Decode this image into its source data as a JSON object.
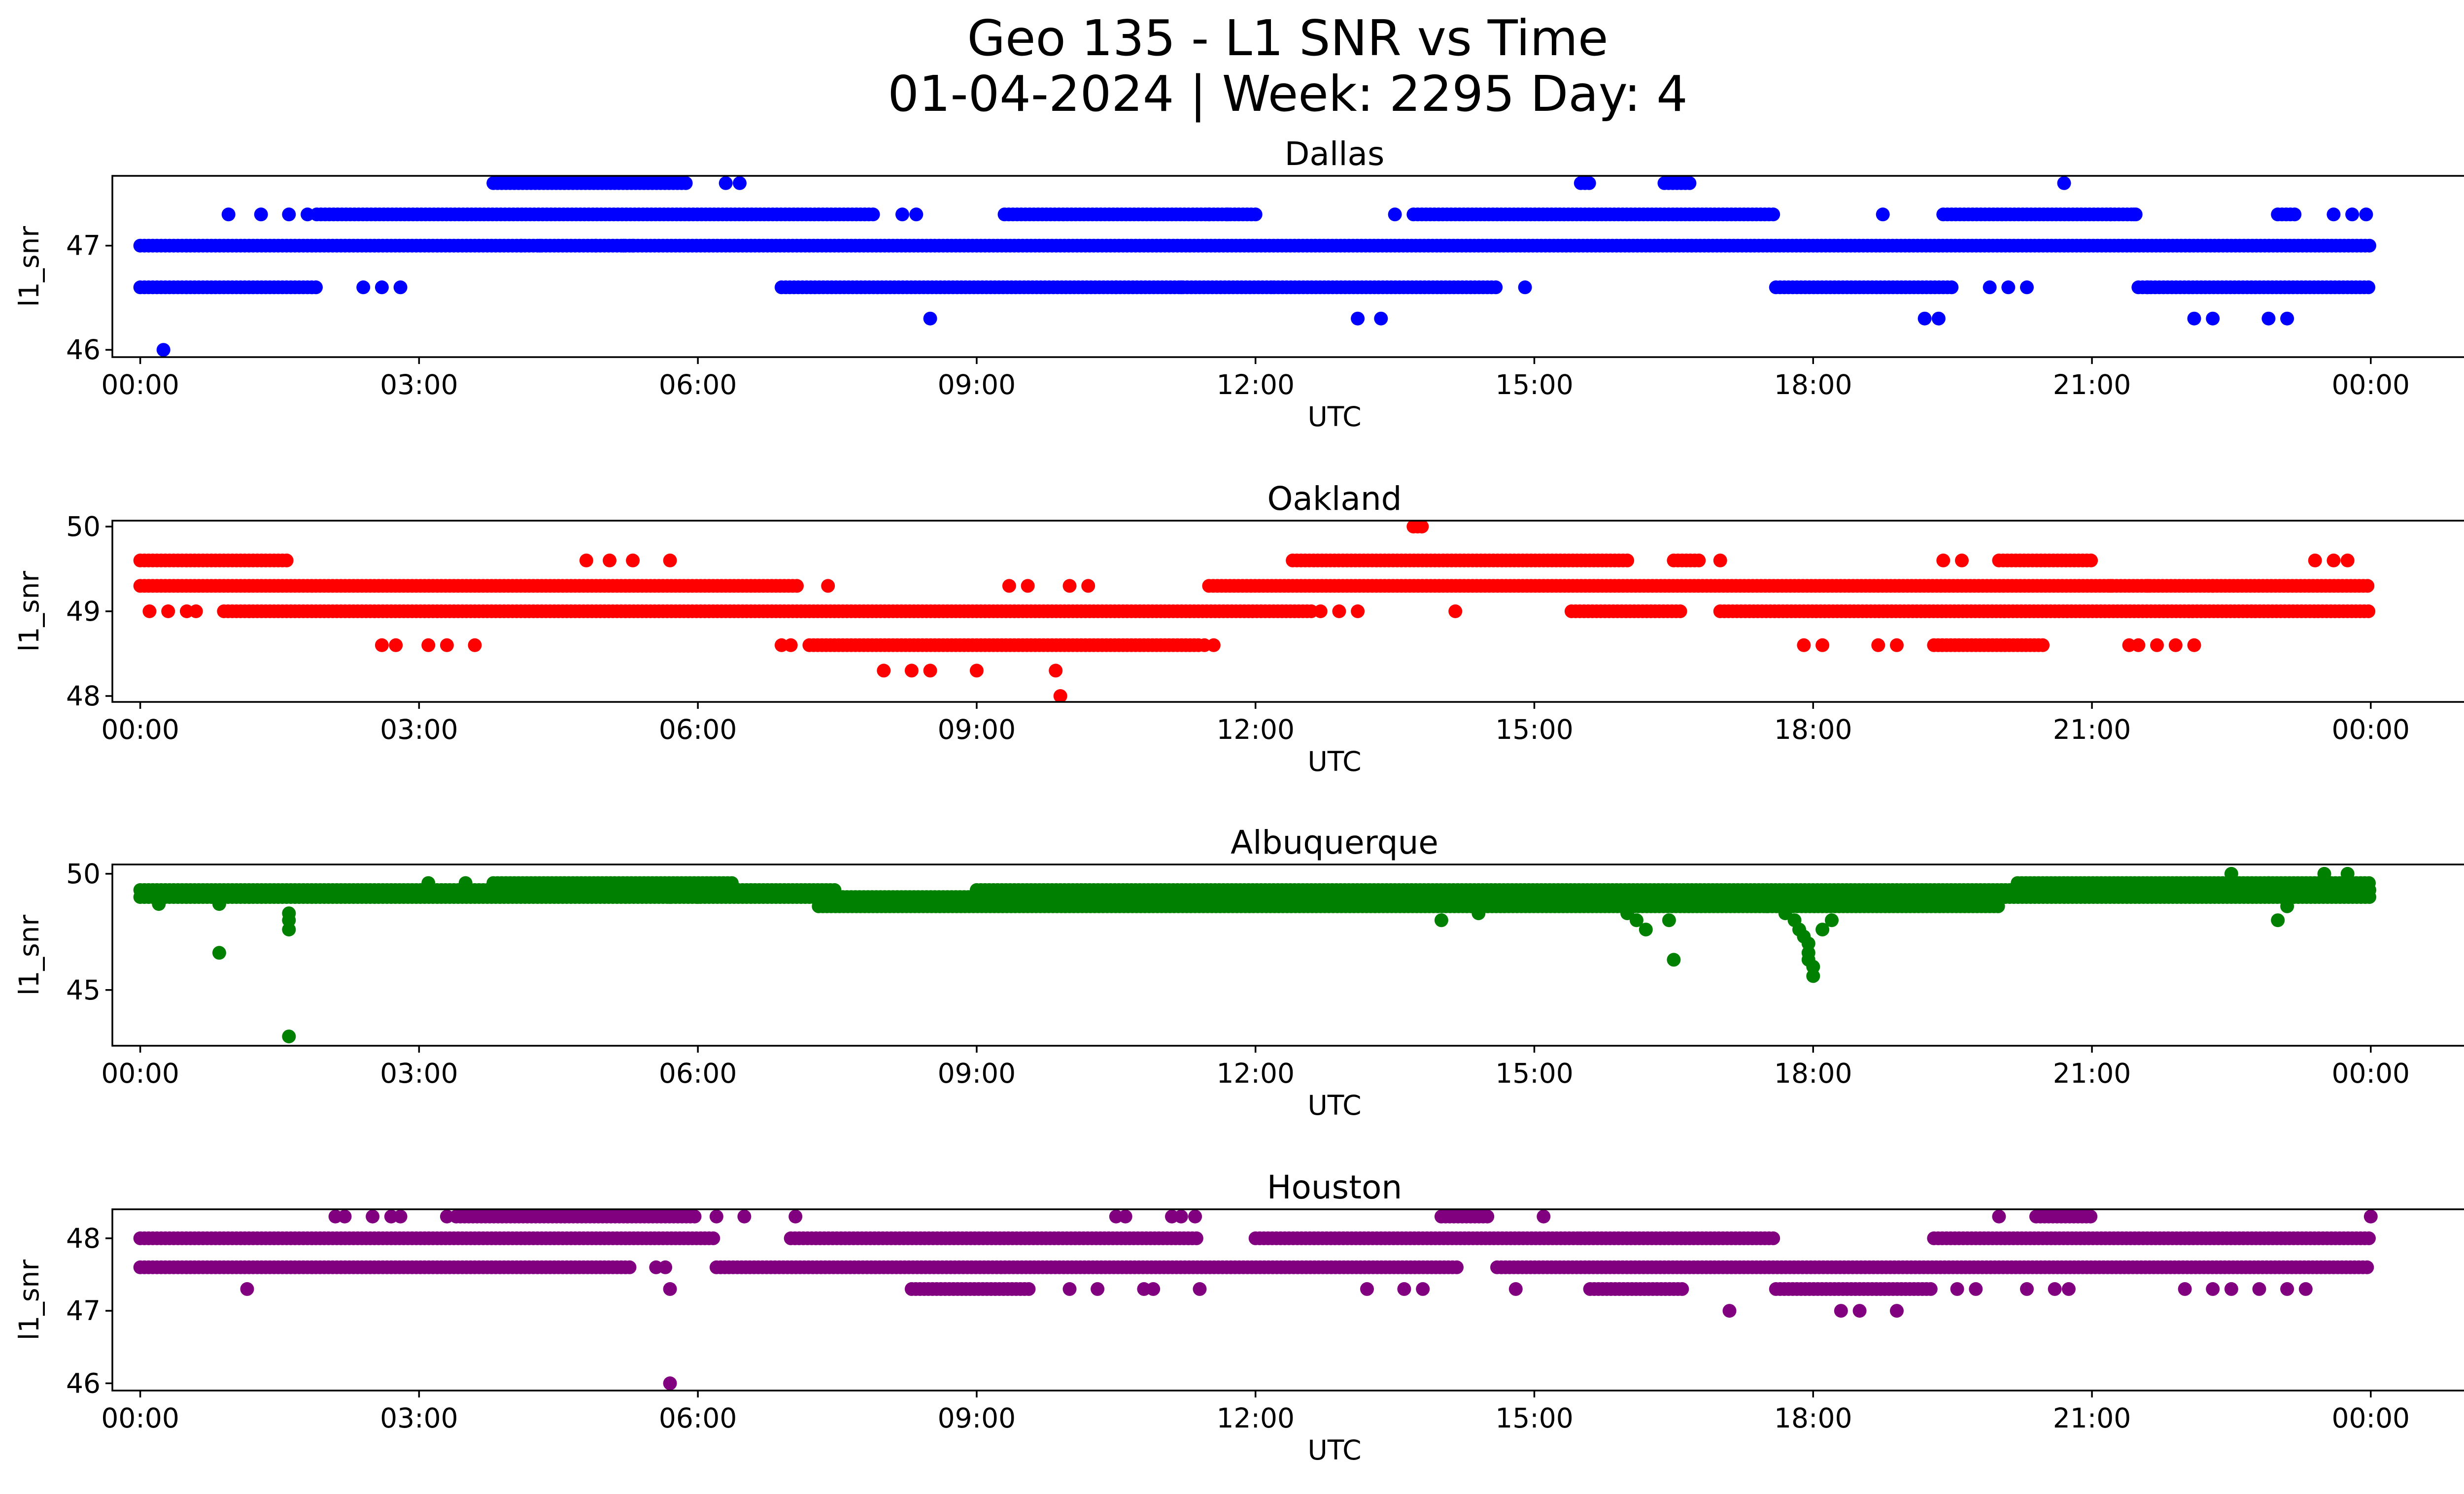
{
  "figure": {
    "title_line1": "Geo 135 - L1 SNR vs Time",
    "title_line2": "01-04-2024 | Week: 2295 Day: 4"
  },
  "chart_data": [
    {
      "type": "scatter",
      "title": "Dallas",
      "xlabel": "UTC",
      "ylabel": "l1_snr",
      "color": "#0000ff",
      "xlim": [
        -0.3,
        26.0
      ],
      "ylim": [
        45.93,
        47.67
      ],
      "xticks": [
        "00:00",
        "03:00",
        "06:00",
        "09:00",
        "12:00",
        "15:00",
        "18:00",
        "21:00",
        "00:00"
      ],
      "yticks": [
        46,
        47
      ],
      "bands": [
        {
          "y": 47.0,
          "ranges": [
            [
              0.0,
              24.0
            ]
          ]
        },
        {
          "y": 47.3,
          "ranges": [
            [
              1.9,
              7.9
            ],
            [
              9.3,
              12.0
            ],
            [
              13.7,
              17.6
            ],
            [
              19.4,
              21.5
            ],
            [
              23.0,
              23.2
            ]
          ]
        },
        {
          "y": 46.6,
          "ranges": [
            [
              0.0,
              1.9
            ],
            [
              6.9,
              12.2
            ],
            [
              12.2,
              14.6
            ],
            [
              17.6,
              19.5
            ],
            [
              21.5,
              24.0
            ]
          ]
        },
        {
          "y": 47.6,
          "ranges": [
            [
              3.8,
              5.9
            ],
            [
              15.5,
              15.6
            ],
            [
              16.4,
              16.7
            ]
          ]
        }
      ],
      "points": [
        [
          0.25,
          46.0
        ],
        [
          0.95,
          47.3
        ],
        [
          1.3,
          47.3
        ],
        [
          1.6,
          47.3
        ],
        [
          1.8,
          47.3
        ],
        [
          2.4,
          46.6
        ],
        [
          2.6,
          46.6
        ],
        [
          2.8,
          46.6
        ],
        [
          4.1,
          47.0
        ],
        [
          4.3,
          47.0
        ],
        [
          4.9,
          47.0
        ],
        [
          5.2,
          47.0
        ],
        [
          5.3,
          47.0
        ],
        [
          6.3,
          47.6
        ],
        [
          6.45,
          47.6
        ],
        [
          8.2,
          47.3
        ],
        [
          8.35,
          47.3
        ],
        [
          8.5,
          46.3
        ],
        [
          10.5,
          46.6
        ],
        [
          11.2,
          46.6
        ],
        [
          11.5,
          47.3
        ],
        [
          11.7,
          47.3
        ],
        [
          13.1,
          46.3
        ],
        [
          13.35,
          46.3
        ],
        [
          13.5,
          47.3
        ],
        [
          14.9,
          46.6
        ],
        [
          18.75,
          47.3
        ],
        [
          19.2,
          46.3
        ],
        [
          19.35,
          46.3
        ],
        [
          19.9,
          46.6
        ],
        [
          20.1,
          46.6
        ],
        [
          20.3,
          46.6
        ],
        [
          20.7,
          47.6
        ],
        [
          21.2,
          47.3
        ],
        [
          21.45,
          47.3
        ],
        [
          21.6,
          46.6
        ],
        [
          22.1,
          46.3
        ],
        [
          22.3,
          46.3
        ],
        [
          22.9,
          46.3
        ],
        [
          23.1,
          46.3
        ],
        [
          23.6,
          47.3
        ],
        [
          23.8,
          47.3
        ],
        [
          23.95,
          47.3
        ]
      ]
    },
    {
      "type": "scatter",
      "title": "Oakland",
      "xlabel": "UTC",
      "ylabel": "l1_snr",
      "color": "#ff0000",
      "xlim": [
        -0.3,
        26.0
      ],
      "ylim": [
        47.93,
        50.07
      ],
      "xticks": [
        "00:00",
        "03:00",
        "06:00",
        "09:00",
        "12:00",
        "15:00",
        "18:00",
        "21:00",
        "00:00"
      ],
      "yticks": [
        48,
        49,
        50
      ],
      "bands": [
        {
          "y": 49.3,
          "ranges": [
            [
              0.0,
              7.1
            ],
            [
              11.5,
              24.0
            ]
          ]
        },
        {
          "y": 49.0,
          "ranges": [
            [
              0.9,
              12.6
            ],
            [
              15.4,
              16.6
            ],
            [
              17.0,
              24.0
            ]
          ]
        },
        {
          "y": 48.6,
          "ranges": [
            [
              7.2,
              11.4
            ],
            [
              19.3,
              20.5
            ]
          ]
        },
        {
          "y": 49.6,
          "ranges": [
            [
              0.0,
              1.6
            ],
            [
              12.4,
              16.0
            ],
            [
              16.5,
              16.8
            ],
            [
              20.0,
              21.0
            ]
          ]
        },
        {
          "y": 50.0,
          "ranges": [
            [
              13.7,
              13.8
            ]
          ]
        }
      ],
      "points": [
        [
          0.1,
          49.0
        ],
        [
          0.3,
          49.0
        ],
        [
          0.5,
          49.0
        ],
        [
          0.6,
          49.0
        ],
        [
          2.6,
          48.6
        ],
        [
          2.75,
          48.6
        ],
        [
          3.1,
          48.6
        ],
        [
          3.3,
          48.6
        ],
        [
          3.6,
          48.6
        ],
        [
          4.8,
          49.6
        ],
        [
          5.05,
          49.6
        ],
        [
          5.3,
          49.6
        ],
        [
          5.7,
          49.6
        ],
        [
          6.9,
          48.6
        ],
        [
          7.0,
          48.6
        ],
        [
          7.4,
          49.3
        ],
        [
          8.0,
          48.3
        ],
        [
          8.3,
          48.3
        ],
        [
          8.5,
          48.3
        ],
        [
          9.0,
          48.3
        ],
        [
          9.35,
          49.3
        ],
        [
          9.55,
          49.3
        ],
        [
          9.85,
          48.3
        ],
        [
          9.9,
          48.0
        ],
        [
          10.0,
          49.3
        ],
        [
          10.2,
          49.3
        ],
        [
          11.45,
          48.6
        ],
        [
          11.55,
          48.6
        ],
        [
          12.7,
          49.0
        ],
        [
          12.9,
          49.0
        ],
        [
          13.1,
          49.0
        ],
        [
          14.15,
          49.0
        ],
        [
          17.0,
          49.6
        ],
        [
          17.9,
          48.6
        ],
        [
          18.1,
          48.6
        ],
        [
          18.7,
          48.6
        ],
        [
          18.9,
          48.6
        ],
        [
          19.4,
          49.6
        ],
        [
          19.6,
          49.6
        ],
        [
          21.4,
          48.6
        ],
        [
          21.5,
          48.6
        ],
        [
          21.7,
          48.6
        ],
        [
          21.9,
          48.6
        ],
        [
          22.1,
          48.6
        ],
        [
          23.4,
          49.6
        ],
        [
          23.6,
          49.6
        ],
        [
          23.75,
          49.6
        ],
        [
          21.2,
          49.3
        ],
        [
          21.6,
          49.3
        ],
        [
          22.3,
          49.3
        ]
      ]
    },
    {
      "type": "scatter",
      "title": "Albuquerque",
      "xlabel": "UTC",
      "ylabel": "l1_snr",
      "color": "#008000",
      "xlim": [
        -0.3,
        26.0
      ],
      "ylim": [
        42.6,
        50.4
      ],
      "xticks": [
        "00:00",
        "03:00",
        "06:00",
        "09:00",
        "12:00",
        "15:00",
        "18:00",
        "21:00",
        "00:00"
      ],
      "yticks": [
        45,
        50
      ],
      "bands": [
        {
          "y": 49.0,
          "ranges": [
            [
              0.0,
              24.0
            ]
          ]
        },
        {
          "y": 49.3,
          "ranges": [
            [
              0.0,
              7.5
            ],
            [
              9.0,
              24.0
            ]
          ]
        },
        {
          "y": 48.6,
          "ranges": [
            [
              7.3,
              20.0
            ]
          ]
        },
        {
          "y": 49.6,
          "ranges": [
            [
              3.8,
              6.4
            ],
            [
              20.2,
              24.0
            ]
          ]
        }
      ],
      "points": [
        [
          0.2,
          48.7
        ],
        [
          0.85,
          48.7
        ],
        [
          0.85,
          46.6
        ],
        [
          1.6,
          48.3
        ],
        [
          1.6,
          48.0
        ],
        [
          1.6,
          47.6
        ],
        [
          1.6,
          43.0
        ],
        [
          3.1,
          49.6
        ],
        [
          3.5,
          49.6
        ],
        [
          5.7,
          49.0
        ],
        [
          6.0,
          49.0
        ],
        [
          14.0,
          48.0
        ],
        [
          14.4,
          48.3
        ],
        [
          16.0,
          48.3
        ],
        [
          16.1,
          48.0
        ],
        [
          16.2,
          47.6
        ],
        [
          16.45,
          48.0
        ],
        [
          16.5,
          46.3
        ],
        [
          17.5,
          48.6
        ],
        [
          17.7,
          48.3
        ],
        [
          17.8,
          48.0
        ],
        [
          17.85,
          47.6
        ],
        [
          17.9,
          47.3
        ],
        [
          17.95,
          47.0
        ],
        [
          17.95,
          46.6
        ],
        [
          17.95,
          46.3
        ],
        [
          18.0,
          46.0
        ],
        [
          18.0,
          45.6
        ],
        [
          18.1,
          47.6
        ],
        [
          18.2,
          48.0
        ],
        [
          22.5,
          50.0
        ],
        [
          22.9,
          49.6
        ],
        [
          23.0,
          48.0
        ],
        [
          23.1,
          48.6
        ],
        [
          23.5,
          50.0
        ],
        [
          23.75,
          50.0
        ]
      ]
    },
    {
      "type": "scatter",
      "title": "Houston",
      "xlabel": "UTC",
      "ylabel": "l1_snr",
      "color": "#800080",
      "xlim": [
        -0.3,
        26.0
      ],
      "ylim": [
        45.9,
        48.4
      ],
      "xticks": [
        "00:00",
        "03:00",
        "06:00",
        "09:00",
        "12:00",
        "15:00",
        "18:00",
        "21:00",
        "00:00"
      ],
      "yticks": [
        46,
        47,
        48
      ],
      "bands": [
        {
          "y": 47.6,
          "ranges": [
            [
              0.0,
              5.3
            ],
            [
              6.2,
              14.2
            ],
            [
              14.6,
              24.0
            ]
          ]
        },
        {
          "y": 48.0,
          "ranges": [
            [
              0.0,
              6.2
            ],
            [
              7.0,
              11.4
            ],
            [
              12.0,
              15.5
            ],
            [
              15.5,
              17.6
            ],
            [
              19.3,
              24.0
            ]
          ]
        },
        {
          "y": 48.3,
          "ranges": [
            [
              3.4,
              6.0
            ],
            [
              14.0,
              14.5
            ],
            [
              20.4,
              21.0
            ]
          ]
        },
        {
          "y": 47.3,
          "ranges": [
            [
              8.3,
              9.6
            ],
            [
              15.6,
              16.6
            ],
            [
              17.6,
              19.3
            ]
          ]
        }
      ],
      "points": [
        [
          1.15,
          47.3
        ],
        [
          2.1,
          48.3
        ],
        [
          2.2,
          48.3
        ],
        [
          2.5,
          48.3
        ],
        [
          2.7,
          48.3
        ],
        [
          2.8,
          48.3
        ],
        [
          3.3,
          48.3
        ],
        [
          5.55,
          47.6
        ],
        [
          5.65,
          47.6
        ],
        [
          5.7,
          47.3
        ],
        [
          5.7,
          46.0
        ],
        [
          6.2,
          48.3
        ],
        [
          6.5,
          48.3
        ],
        [
          7.05,
          48.3
        ],
        [
          10.0,
          47.3
        ],
        [
          10.3,
          47.3
        ],
        [
          10.5,
          48.3
        ],
        [
          10.6,
          48.3
        ],
        [
          10.8,
          47.3
        ],
        [
          10.9,
          47.3
        ],
        [
          11.1,
          48.3
        ],
        [
          11.2,
          48.3
        ],
        [
          11.35,
          48.3
        ],
        [
          11.4,
          47.3
        ],
        [
          13.2,
          47.3
        ],
        [
          13.6,
          47.3
        ],
        [
          13.8,
          47.3
        ],
        [
          14.8,
          47.3
        ],
        [
          15.1,
          48.3
        ],
        [
          17.1,
          47.0
        ],
        [
          18.3,
          47.0
        ],
        [
          18.5,
          47.0
        ],
        [
          18.9,
          47.0
        ],
        [
          19.55,
          47.3
        ],
        [
          19.75,
          47.3
        ],
        [
          20.0,
          48.3
        ],
        [
          20.3,
          47.3
        ],
        [
          20.6,
          47.3
        ],
        [
          20.75,
          47.3
        ],
        [
          22.0,
          47.3
        ],
        [
          22.3,
          47.3
        ],
        [
          22.5,
          47.3
        ],
        [
          22.8,
          47.3
        ],
        [
          23.1,
          47.3
        ],
        [
          23.3,
          47.3
        ],
        [
          24.0,
          48.3
        ]
      ]
    }
  ]
}
